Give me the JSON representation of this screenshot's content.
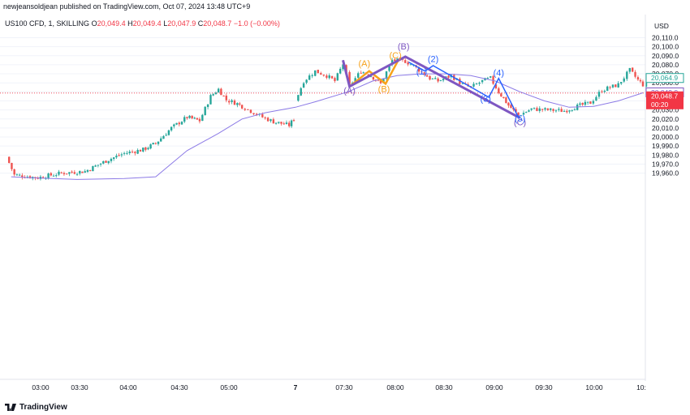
{
  "header": {
    "publisher": "newjeansoldjean published on TradingView.com, Oct 07, 2024 13:48 UTC+9"
  },
  "legend": {
    "symbol": "US100 CFD, 1, SKILLING",
    "o_label": "O",
    "o_value": "20,049.4",
    "h_label": "H",
    "h_value": "20,049.4",
    "l_label": "L",
    "l_value": "20,047.9",
    "c_label": "C",
    "c_value": "20,048.7",
    "change": "−1.0 (−0.00%)"
  },
  "price_axis": {
    "currency": "USD",
    "ticks": [
      "20,110.0",
      "20,100.0",
      "20,090.0",
      "20,080.0",
      "20,070.0",
      "20,060.0",
      "20,050.0",
      "20,040.0",
      "20,030.0",
      "20,020.0",
      "20,010.0",
      "20,000.0",
      "19,990.0",
      "19,980.0",
      "19,970.0",
      "19,960.0"
    ],
    "tags": [
      {
        "text": "20,064.9",
        "value": 20064.9,
        "color": "#26a69a"
      },
      {
        "text": "20,049.0",
        "value": 20049.0,
        "color": "#7e57c2"
      },
      {
        "text": "20,048.7",
        "value": 20048.7,
        "color": "#f23645",
        "sub": "00:20"
      }
    ]
  },
  "time_axis": {
    "ticks": [
      "03:00",
      "03:30",
      "04:00",
      "04:30",
      "05:00",
      "7",
      "07:30",
      "08:00",
      "08:30",
      "09:00",
      "09:30",
      "10:00",
      "10:"
    ]
  },
  "footer": {
    "brand": "TradingView"
  },
  "colors": {
    "up": "#26a69a",
    "down": "#ef5350",
    "ma": "#8c7ae6",
    "wave": "#7e57c2",
    "orange": "#f7a21b",
    "blue": "#2962ff",
    "current": "#f23645"
  },
  "chart_data": {
    "type": "candlestick",
    "y_range": [
      19960,
      20115
    ],
    "current_price": 20048.7,
    "path_points": [
      {
        "t": "02:45",
        "p": 19978
      },
      {
        "t": "02:50",
        "p": 19958
      },
      {
        "t": "03:05",
        "p": 19955
      },
      {
        "t": "03:20",
        "p": 19960
      },
      {
        "t": "03:35",
        "p": 19962
      },
      {
        "t": "03:50",
        "p": 19975
      },
      {
        "t": "04:00",
        "p": 19982
      },
      {
        "t": "04:12",
        "p": 19986
      },
      {
        "t": "04:20",
        "p": 19993
      },
      {
        "t": "04:30",
        "p": 20010
      },
      {
        "t": "04:40",
        "p": 20022
      },
      {
        "t": "04:48",
        "p": 20018
      },
      {
        "t": "04:55",
        "p": 20045
      },
      {
        "t": "05:00",
        "p": 20053
      },
      {
        "t": "05:05",
        "p": 20041
      },
      {
        "t": "05:12",
        "p": 20037
      },
      {
        "t": "05:15",
        "p": 20034
      },
      {
        "t": "05:28",
        "p": 20022
      },
      {
        "t": "05:35",
        "p": 20017
      },
      {
        "t": "05:45",
        "p": 20013
      },
      {
        "t": "05:48",
        "p": 20020
      },
      {
        "t": "06:58",
        "p": 20040
      },
      {
        "t": "07:03",
        "p": 20062
      },
      {
        "t": "07:10",
        "p": 20073
      },
      {
        "t": "07:17",
        "p": 20068
      },
      {
        "t": "07:22",
        "p": 20062
      },
      {
        "t": "07:27",
        "p": 20081
      },
      {
        "t": "07:31",
        "p": 20057
      },
      {
        "t": "07:38",
        "p": 20073
      },
      {
        "t": "07:44",
        "p": 20068
      },
      {
        "t": "07:50",
        "p": 20059
      },
      {
        "t": "07:57",
        "p": 20085
      },
      {
        "t": "08:05",
        "p": 20084
      },
      {
        "t": "08:10",
        "p": 20079
      },
      {
        "t": "08:15",
        "p": 20072
      },
      {
        "t": "08:20",
        "p": 20065
      },
      {
        "t": "08:25",
        "p": 20062
      },
      {
        "t": "08:33",
        "p": 20068
      },
      {
        "t": "08:40",
        "p": 20058
      },
      {
        "t": "08:45",
        "p": 20055
      },
      {
        "t": "08:52",
        "p": 20062
      },
      {
        "t": "08:57",
        "p": 20065
      },
      {
        "t": "09:02",
        "p": 20050
      },
      {
        "t": "09:08",
        "p": 20035
      },
      {
        "t": "09:14",
        "p": 20024
      },
      {
        "t": "09:22",
        "p": 20031
      },
      {
        "t": "09:32",
        "p": 20030
      },
      {
        "t": "09:42",
        "p": 20029
      },
      {
        "t": "09:50",
        "p": 20034
      },
      {
        "t": "09:58",
        "p": 20038
      },
      {
        "t": "10:05",
        "p": 20052
      },
      {
        "t": "10:15",
        "p": 20058
      },
      {
        "t": "10:22",
        "p": 20074
      },
      {
        "t": "10:27",
        "p": 20063
      },
      {
        "t": "10:30",
        "p": 20058
      },
      {
        "t": "10:32",
        "p": 20064
      }
    ],
    "ma_line": [
      {
        "t": "02:48",
        "p": 19956
      },
      {
        "t": "03:00",
        "p": 19955
      },
      {
        "t": "03:30",
        "p": 19953
      },
      {
        "t": "04:00",
        "p": 19954
      },
      {
        "t": "04:20",
        "p": 19956
      },
      {
        "t": "04:40",
        "p": 19985
      },
      {
        "t": "05:00",
        "p": 20004
      },
      {
        "t": "05:15",
        "p": 20020
      },
      {
        "t": "05:30",
        "p": 20027
      },
      {
        "t": "06:58",
        "p": 20033
      },
      {
        "t": "07:10",
        "p": 20039
      },
      {
        "t": "07:30",
        "p": 20050
      },
      {
        "t": "07:45",
        "p": 20062
      },
      {
        "t": "08:00",
        "p": 20068
      },
      {
        "t": "08:15",
        "p": 20070
      },
      {
        "t": "08:30",
        "p": 20070
      },
      {
        "t": "08:45",
        "p": 20068
      },
      {
        "t": "09:00",
        "p": 20062
      },
      {
        "t": "09:15",
        "p": 20050
      },
      {
        "t": "09:30",
        "p": 20040
      },
      {
        "t": "09:45",
        "p": 20033
      },
      {
        "t": "10:00",
        "p": 20034
      },
      {
        "t": "10:15",
        "p": 20040
      },
      {
        "t": "10:30",
        "p": 20049
      }
    ],
    "wave_main": [
      {
        "t": "07:27",
        "p": 20085
      },
      {
        "t": "07:31",
        "p": 20056
      },
      {
        "t": "08:05",
        "p": 20089
      },
      {
        "t": "09:15",
        "p": 20021
      }
    ],
    "wave_orange": [
      {
        "t": "07:31",
        "p": 20056
      },
      {
        "t": "07:43",
        "p": 20073
      },
      {
        "t": "07:53",
        "p": 20059
      },
      {
        "t": "08:01",
        "p": 20086
      }
    ],
    "wave_blue": [
      {
        "t": "08:07",
        "p": 20083
      },
      {
        "t": "08:17",
        "p": 20073
      },
      {
        "t": "08:22",
        "p": 20079
      },
      {
        "t": "08:56",
        "p": 20044
      },
      {
        "t": "09:02",
        "p": 20065
      },
      {
        "t": "09:14",
        "p": 20022
      }
    ],
    "wave_labels": [
      {
        "text": "(A)",
        "t": "07:31",
        "p": 20048,
        "color": "#7e57c2"
      },
      {
        "text": "(B)",
        "t": "08:04",
        "p": 20097,
        "color": "#7e57c2"
      },
      {
        "text": "(C)",
        "t": "09:15",
        "p": 20013,
        "color": "#7e57c2"
      },
      {
        "text": "(A)",
        "t": "07:40",
        "p": 20078,
        "color": "#f7a21b"
      },
      {
        "text": "(B)",
        "t": "07:52",
        "p": 20050,
        "color": "#f7a21b"
      },
      {
        "text": "(C)",
        "t": "07:59",
        "p": 20087,
        "color": "#f7a21b"
      },
      {
        "text": "(1)",
        "t": "08:15",
        "p": 20069,
        "color": "#2962ff"
      },
      {
        "text": "(2)",
        "t": "08:22",
        "p": 20083,
        "color": "#2962ff"
      },
      {
        "text": "(3)",
        "t": "08:54",
        "p": 20039,
        "color": "#2962ff"
      },
      {
        "text": "(4)",
        "t": "09:02",
        "p": 20068,
        "color": "#2962ff"
      },
      {
        "text": "(5)",
        "t": "09:15",
        "p": 20017,
        "color": "#2962ff"
      }
    ]
  }
}
